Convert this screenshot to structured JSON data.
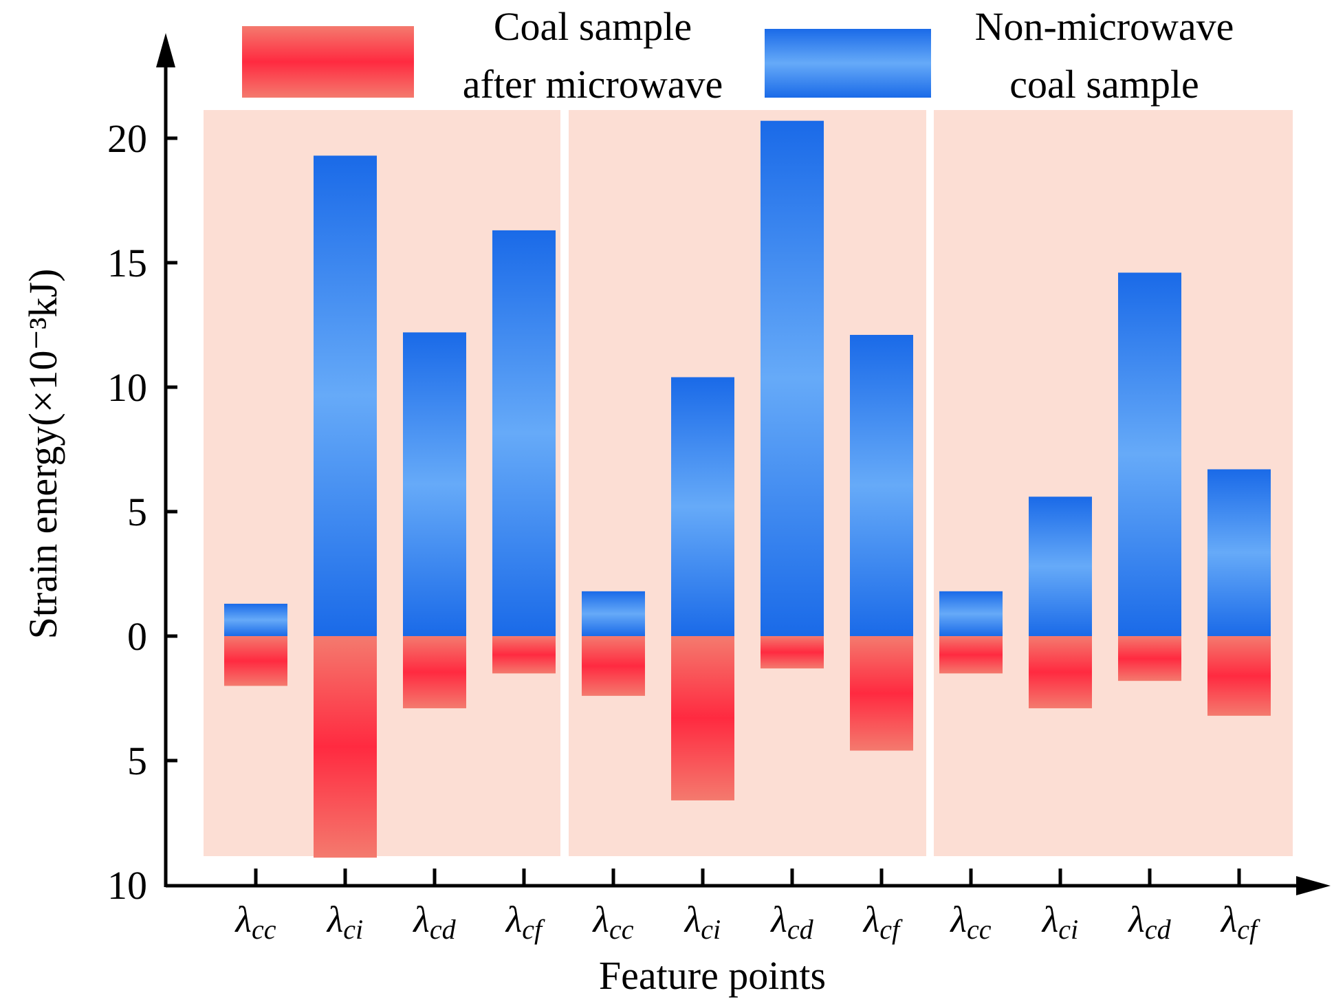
{
  "chart_data": {
    "type": "bar",
    "title": "",
    "xlabel": "Feature points",
    "ylabel": "Strain energy(×10⁻³kJ)",
    "ylim_positive": [
      0,
      24
    ],
    "ylim_negative": [
      0,
      10
    ],
    "y_ticks_positive": [
      "0",
      "5",
      "10",
      "15",
      "20"
    ],
    "y_ticks_negative": [
      "5",
      "10"
    ],
    "categories": [
      "λcc",
      "λci",
      "λcd",
      "λcf",
      "λcc",
      "λci",
      "λcd",
      "λcf",
      "λcc",
      "λci",
      "λcd",
      "λcf"
    ],
    "category_parts": [
      {
        "sym": "λ",
        "sub": "cc"
      },
      {
        "sym": "λ",
        "sub": "ci"
      },
      {
        "sym": "λ",
        "sub": "cd"
      },
      {
        "sym": "λ",
        "sub": "cf"
      },
      {
        "sym": "λ",
        "sub": "cc"
      },
      {
        "sym": "λ",
        "sub": "ci"
      },
      {
        "sym": "λ",
        "sub": "cd"
      },
      {
        "sym": "λ",
        "sub": "cf"
      },
      {
        "sym": "λ",
        "sub": "cc"
      },
      {
        "sym": "λ",
        "sub": "ci"
      },
      {
        "sym": "λ",
        "sub": "cd"
      },
      {
        "sym": "λ",
        "sub": "cf"
      }
    ],
    "groups": 3,
    "series": [
      {
        "name": "Non-microwave coal sample",
        "legend_lines": [
          "Non-microwave",
          "coal sample"
        ],
        "direction": "up",
        "colors": {
          "edge": "#1a6ae8",
          "center": "#66aaf8"
        },
        "values": [
          1.3,
          19.3,
          12.2,
          16.3,
          1.8,
          10.4,
          20.7,
          12.1,
          1.8,
          5.6,
          14.6,
          6.7
        ]
      },
      {
        "name": "Coal sample after microwave",
        "legend_lines": [
          "Coal sample",
          "after microwave"
        ],
        "direction": "down",
        "colors": {
          "edge": "#f47a6e",
          "center": "#ff2a40"
        },
        "values": [
          2.0,
          8.9,
          2.9,
          1.5,
          2.4,
          6.6,
          1.3,
          4.6,
          1.5,
          2.9,
          1.8,
          3.2
        ]
      }
    ],
    "group_background_color": "#fcded4"
  }
}
